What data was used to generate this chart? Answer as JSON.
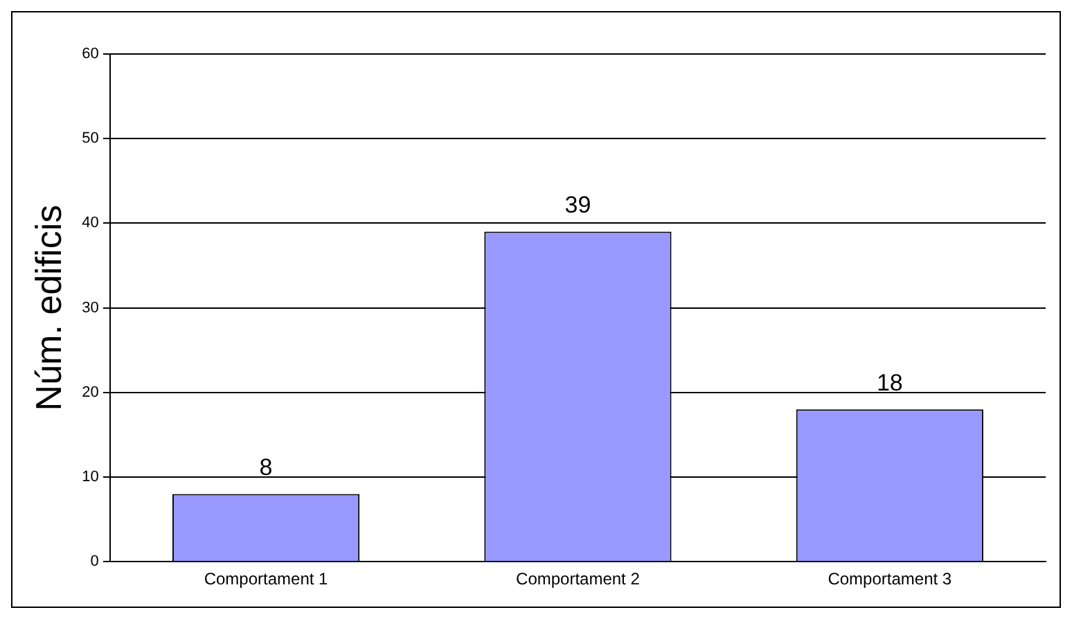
{
  "chart_data": {
    "type": "bar",
    "ylabel": "Núm. edificis",
    "categories": [
      "Comportament 1",
      "Comportament 2",
      "Comportament 3"
    ],
    "values": [
      8,
      39,
      18
    ],
    "color": "#9999ff",
    "ylim": [
      0,
      60
    ],
    "yticks": [
      0,
      10,
      20,
      30,
      40,
      50,
      60
    ],
    "grid": "y",
    "data_labels": true
  }
}
